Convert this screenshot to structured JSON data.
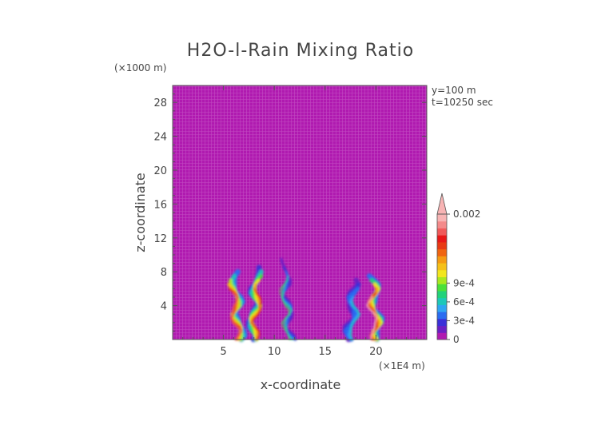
{
  "chart_data": {
    "type": "heatmap",
    "title": "H2O-l-Rain Mixing Ratio",
    "xlabel": "x-coordinate",
    "ylabel": "z-coordinate",
    "x_unit": "(×1E4 m)",
    "y_unit": "(×1000 m)",
    "annotations": [
      "y=100 m",
      "t=10250 sec"
    ],
    "xlim": [
      0,
      25
    ],
    "ylim": [
      0,
      30
    ],
    "x_ticks": [
      5,
      10,
      15,
      20
    ],
    "y_ticks": [
      4,
      8,
      12,
      16,
      20,
      24,
      28
    ],
    "grid": false,
    "background_value": 0,
    "colorbar": {
      "placement": "right",
      "labels": [
        {
          "value": 0,
          "label": "0"
        },
        {
          "value": 0.0003,
          "label": "3e-4"
        },
        {
          "value": 0.0006,
          "label": "6e-4"
        },
        {
          "value": 0.0009,
          "label": "9e-4"
        },
        {
          "value": 0.002,
          "label": "0.002"
        }
      ],
      "colors": [
        "#b01ab0",
        "#6b1fc4",
        "#3a30d8",
        "#2a6cf0",
        "#2fa6f2",
        "#1ec8b8",
        "#22d27a",
        "#4ae03a",
        "#a8e820",
        "#f2e61e",
        "#f5c018",
        "#f59a12",
        "#f06410",
        "#e83a14",
        "#e81818",
        "#f05a5a",
        "#f48a8a",
        "#f8b4b4"
      ]
    },
    "features": [
      {
        "x_center": 6.2,
        "z_top": 8.2,
        "peak": 0.0018
      },
      {
        "x_center": 8.2,
        "z_top": 8.8,
        "peak": 0.0016
      },
      {
        "x_center": 11.2,
        "z_top": 9.5,
        "peak": 0.0008
      },
      {
        "x_center": 17.8,
        "z_top": 7.0,
        "peak": 0.0006
      },
      {
        "x_center": 19.8,
        "z_top": 7.5,
        "peak": 0.002
      }
    ]
  }
}
